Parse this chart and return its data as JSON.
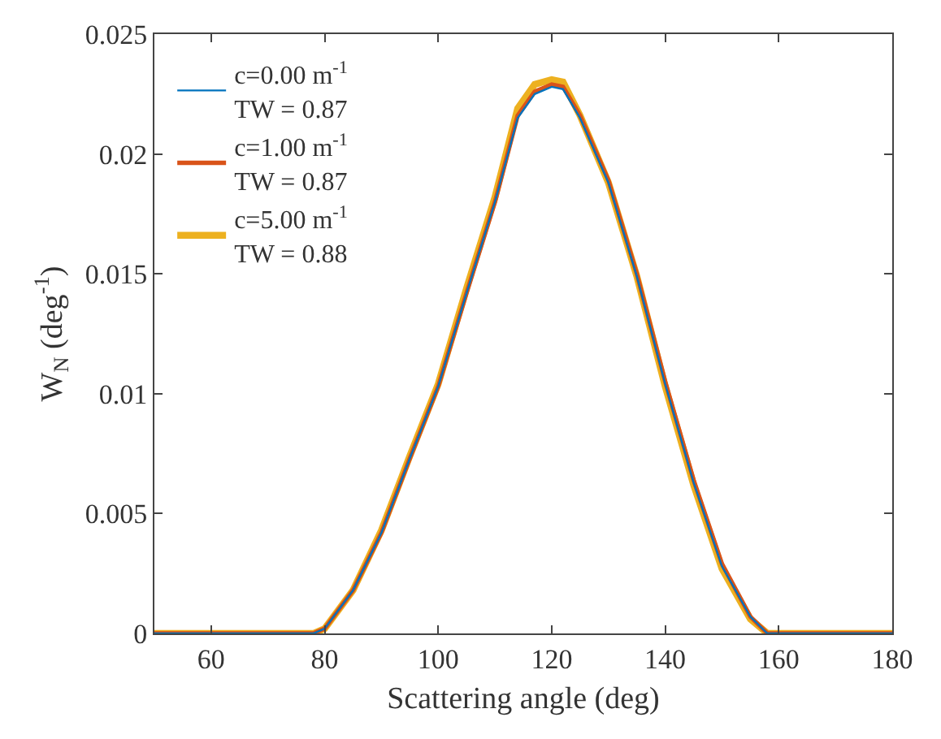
{
  "chart_data": {
    "type": "line",
    "xlabel": "Scattering angle (deg)",
    "ylabel": "W$_{N}$ (deg$^{-1}$)",
    "x": [
      50,
      60,
      70,
      78,
      80,
      85,
      90,
      95,
      100,
      105,
      110,
      114,
      117,
      120,
      122,
      125,
      130,
      135,
      140,
      145,
      150,
      155,
      158,
      160,
      170,
      180
    ],
    "series": [
      {
        "name": "c=0.00 m$^{-1}$\nTW = 0.87",
        "color": "#0072bd",
        "values": [
          0,
          0,
          0,
          0,
          0.0002,
          0.0018,
          0.0042,
          0.0073,
          0.0103,
          0.0142,
          0.018,
          0.0215,
          0.0225,
          0.0228,
          0.0227,
          0.0215,
          0.0188,
          0.0149,
          0.0104,
          0.0063,
          0.0028,
          0.0007,
          0,
          0,
          0,
          0
        ]
      },
      {
        "name": "c=1.00 m$^{-1}$\nTW = 0.87",
        "color": "#d95319",
        "values": [
          0,
          0,
          0,
          0,
          0.0002,
          0.0018,
          0.0042,
          0.0073,
          0.0103,
          0.0142,
          0.018,
          0.0216,
          0.0226,
          0.0229,
          0.0228,
          0.0216,
          0.0189,
          0.015,
          0.0105,
          0.0064,
          0.0029,
          0.0007,
          0,
          0,
          0,
          0
        ]
      },
      {
        "name": "c=5.00 m$^{-1}$\nTW = 0.88",
        "color": "#edb120",
        "values": [
          0,
          0,
          0,
          0,
          0.0002,
          0.0018,
          0.0043,
          0.0074,
          0.0104,
          0.0144,
          0.0182,
          0.0219,
          0.0229,
          0.0231,
          0.023,
          0.0216,
          0.0188,
          0.0149,
          0.0103,
          0.0062,
          0.0027,
          0.0006,
          0,
          0,
          0,
          0
        ]
      }
    ],
    "xlim": [
      50,
      180
    ],
    "xticks": [
      60,
      80,
      100,
      120,
      140,
      160,
      180
    ],
    "ylim": [
      0,
      0.025
    ],
    "yticks": [
      0,
      0.005,
      0.01,
      0.015,
      0.02,
      0.025
    ],
    "legend": "top left",
    "marker": "none",
    "line_style": "solid"
  }
}
